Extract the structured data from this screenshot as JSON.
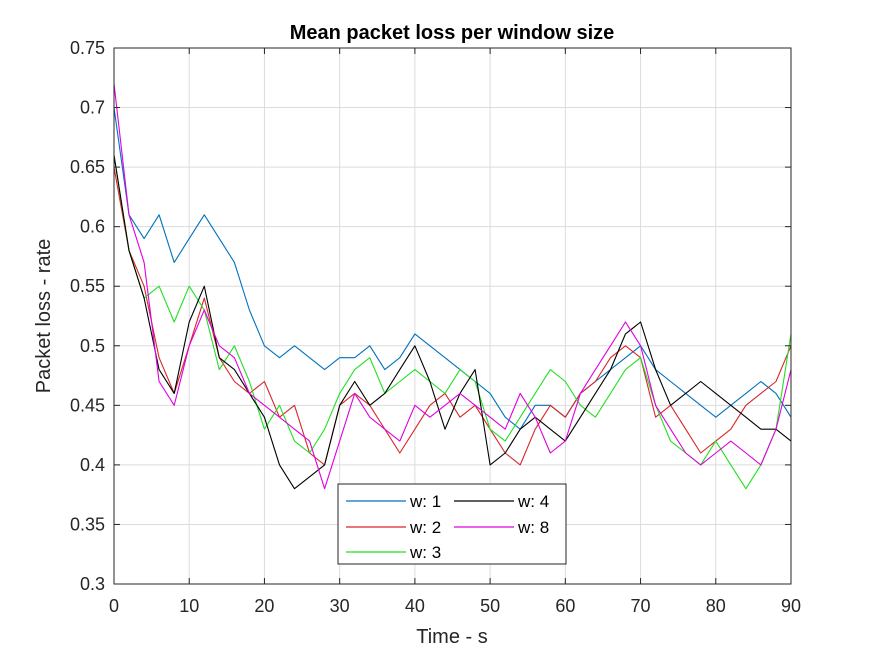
{
  "chart_data": {
    "type": "line",
    "title": "Mean packet loss per window size",
    "xlabel": "Time - s",
    "ylabel": "Packet loss - rate",
    "xlim": [
      0,
      90
    ],
    "ylim": [
      0.3,
      0.75
    ],
    "xticks": [
      "0",
      "10",
      "20",
      "30",
      "40",
      "50",
      "60",
      "70",
      "80",
      "90"
    ],
    "yticks": [
      "0.3",
      "0.35",
      "0.4",
      "0.45",
      "0.5",
      "0.55",
      "0.6",
      "0.65",
      "0.7",
      "0.75"
    ],
    "grid": true,
    "legend_position": "bottom-center",
    "legend_columns": 2,
    "x": [
      0,
      2,
      4,
      6,
      8,
      10,
      12,
      14,
      16,
      18,
      20,
      22,
      24,
      26,
      28,
      30,
      32,
      34,
      36,
      38,
      40,
      42,
      44,
      46,
      48,
      50,
      52,
      54,
      56,
      58,
      60,
      62,
      64,
      66,
      68,
      70,
      72,
      74,
      76,
      78,
      80,
      82,
      84,
      86,
      88,
      90
    ],
    "series": [
      {
        "name": "w: 1",
        "color": "#0072BD",
        "values": [
          0.7,
          0.61,
          0.59,
          0.61,
          0.57,
          0.59,
          0.61,
          0.59,
          0.57,
          0.53,
          0.5,
          0.49,
          0.5,
          0.49,
          0.48,
          0.49,
          0.49,
          0.5,
          0.48,
          0.49,
          0.51,
          0.5,
          0.49,
          0.48,
          0.47,
          0.46,
          0.44,
          0.43,
          0.45,
          0.45,
          0.44,
          0.46,
          0.47,
          0.48,
          0.49,
          0.5,
          0.48,
          0.47,
          0.46,
          0.45,
          0.44,
          0.45,
          0.46,
          0.47,
          0.46,
          0.44
        ]
      },
      {
        "name": "w: 2",
        "color": "#D62728",
        "values": [
          0.65,
          0.58,
          0.55,
          0.49,
          0.46,
          0.5,
          0.54,
          0.49,
          0.47,
          0.46,
          0.47,
          0.44,
          0.45,
          0.41,
          0.4,
          0.45,
          0.46,
          0.45,
          0.43,
          0.41,
          0.43,
          0.45,
          0.46,
          0.44,
          0.45,
          0.43,
          0.41,
          0.4,
          0.43,
          0.45,
          0.44,
          0.46,
          0.47,
          0.49,
          0.5,
          0.49,
          0.44,
          0.45,
          0.43,
          0.41,
          0.42,
          0.43,
          0.45,
          0.46,
          0.47,
          0.5
        ]
      },
      {
        "name": "w: 3",
        "color": "#22E022",
        "values": [
          0.66,
          0.58,
          0.54,
          0.55,
          0.52,
          0.55,
          0.53,
          0.48,
          0.5,
          0.47,
          0.43,
          0.45,
          0.42,
          0.41,
          0.43,
          0.46,
          0.48,
          0.49,
          0.46,
          0.47,
          0.48,
          0.47,
          0.46,
          0.48,
          0.47,
          0.43,
          0.42,
          0.44,
          0.46,
          0.48,
          0.47,
          0.45,
          0.44,
          0.46,
          0.48,
          0.49,
          0.45,
          0.42,
          0.41,
          0.4,
          0.42,
          0.4,
          0.38,
          0.4,
          0.43,
          0.51
        ]
      },
      {
        "name": "w: 4",
        "color": "#000000",
        "values": [
          0.66,
          0.58,
          0.54,
          0.48,
          0.46,
          0.52,
          0.55,
          0.49,
          0.48,
          0.46,
          0.44,
          0.4,
          0.38,
          0.39,
          0.4,
          0.45,
          0.47,
          0.45,
          0.46,
          0.48,
          0.5,
          0.47,
          0.43,
          0.46,
          0.48,
          0.4,
          0.41,
          0.43,
          0.44,
          0.43,
          0.42,
          0.44,
          0.46,
          0.48,
          0.51,
          0.52,
          0.48,
          0.45,
          0.46,
          0.47,
          0.46,
          0.45,
          0.44,
          0.43,
          0.43,
          0.42
        ]
      },
      {
        "name": "w: 8",
        "color": "#E000E0",
        "values": [
          0.72,
          0.61,
          0.57,
          0.47,
          0.45,
          0.5,
          0.53,
          0.5,
          0.49,
          0.46,
          0.45,
          0.44,
          0.43,
          0.42,
          0.38,
          0.42,
          0.46,
          0.44,
          0.43,
          0.42,
          0.45,
          0.44,
          0.45,
          0.46,
          0.45,
          0.44,
          0.43,
          0.46,
          0.44,
          0.41,
          0.42,
          0.46,
          0.48,
          0.5,
          0.52,
          0.5,
          0.45,
          0.43,
          0.41,
          0.4,
          0.41,
          0.42,
          0.41,
          0.4,
          0.43,
          0.48
        ]
      }
    ]
  }
}
